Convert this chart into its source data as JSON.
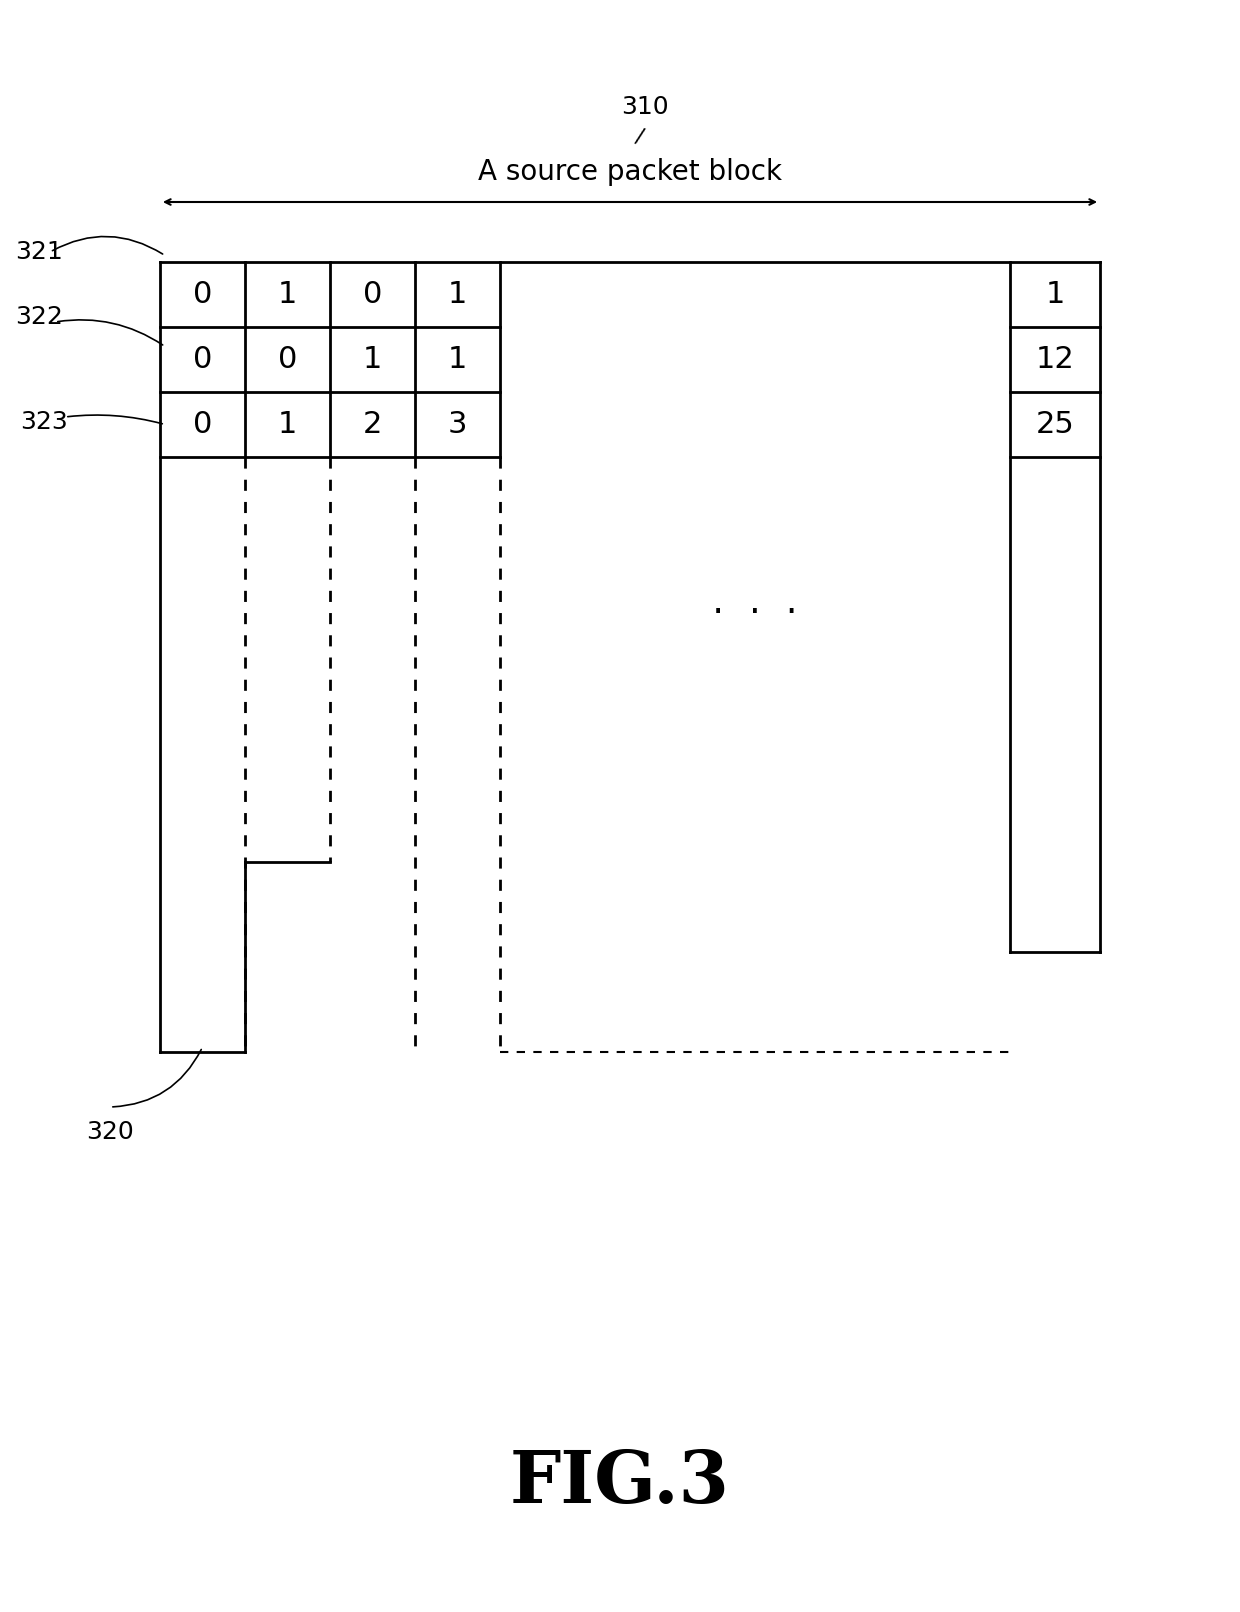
{
  "title": "FIG.3",
  "label_310": "310",
  "label_block": "A source packet block",
  "label_321": "321",
  "label_322": "322",
  "label_323": "323",
  "label_320": "320",
  "row1": [
    "0",
    "1",
    "0",
    "1",
    "1"
  ],
  "row2": [
    "0",
    "0",
    "1",
    "1",
    "12"
  ],
  "row3": [
    "0",
    "1",
    "2",
    "3",
    "25"
  ],
  "dots": ". . .",
  "bg_color": "#ffffff",
  "line_color": "#000000",
  "dashed_color": "#888888",
  "text_color": "#000000",
  "fig_label_size": 48,
  "annotation_size": 18,
  "cell_text_size": 22,
  "label_size": 18
}
